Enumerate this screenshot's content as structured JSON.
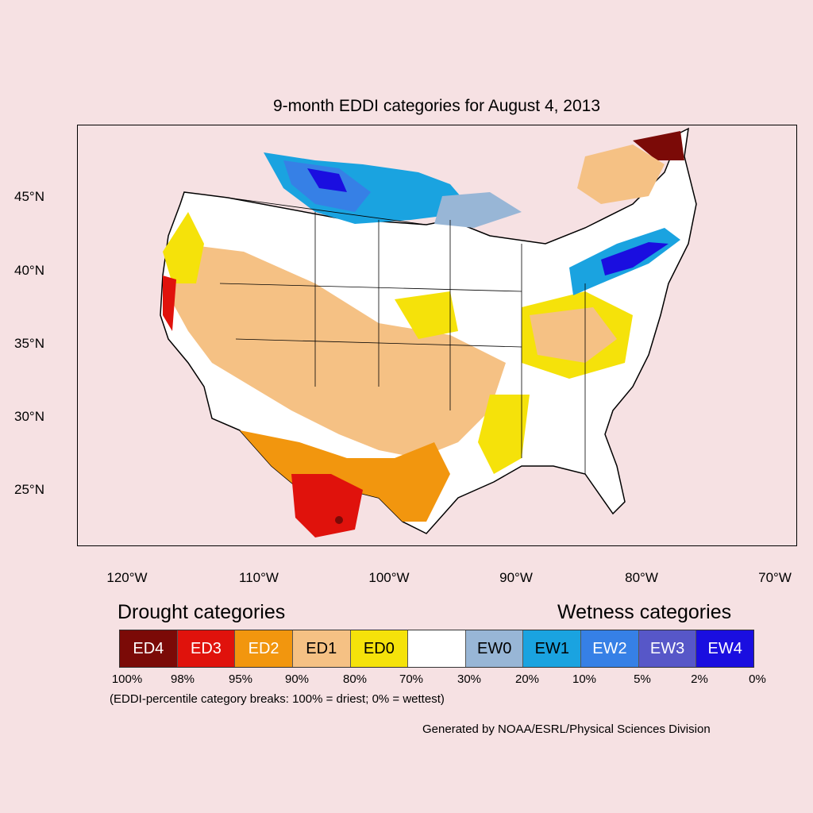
{
  "title": "9-month EDDI categories for August 4, 2013",
  "y_axis_labels": [
    "45°N",
    "40°N",
    "35°N",
    "30°N",
    "25°N"
  ],
  "x_axis_labels": [
    "120°W",
    "110°W",
    "100°W",
    "90°W",
    "80°W",
    "70°W"
  ],
  "legend": {
    "drought_heading": "Drought categories",
    "wetness_heading": "Wetness categories",
    "categories": [
      {
        "label": "ED4",
        "color": "#7b0a07",
        "text_color": "#ffffff"
      },
      {
        "label": "ED3",
        "color": "#e0120c",
        "text_color": "#ffffff"
      },
      {
        "label": "ED2",
        "color": "#f2960e",
        "text_color": "#ffffff"
      },
      {
        "label": "ED1",
        "color": "#f5c184",
        "text_color": "#000000"
      },
      {
        "label": "ED0",
        "color": "#f5e20a",
        "text_color": "#000000"
      },
      {
        "label": "",
        "color": "#ffffff",
        "text_color": "#000000"
      },
      {
        "label": "EW0",
        "color": "#98b6d6",
        "text_color": "#000000"
      },
      {
        "label": "EW1",
        "color": "#1aa3e0",
        "text_color": "#000000"
      },
      {
        "label": "EW2",
        "color": "#3680e6",
        "text_color": "#ffffff"
      },
      {
        "label": "EW3",
        "color": "#5757c8",
        "text_color": "#ffffff"
      },
      {
        "label": "EW4",
        "color": "#1a0ee0",
        "text_color": "#ffffff"
      }
    ],
    "percentile_breaks": [
      "100%",
      "98%",
      "95%",
      "90%",
      "80%",
      "70%",
      "30%",
      "20%",
      "10%",
      "5%",
      "2%",
      "0%"
    ],
    "note": "(EDDI-percentile category breaks: 100% = driest; 0% = wettest)"
  },
  "credit": "Generated by NOAA/ESRL/Physical Sciences Division"
}
